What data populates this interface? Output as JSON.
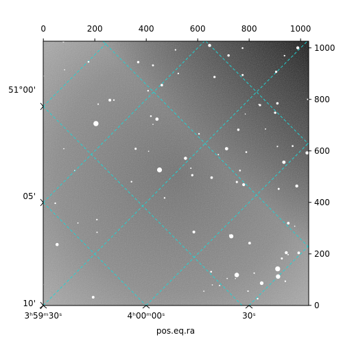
{
  "chart_data": {
    "type": "image",
    "xlabel": "pos.eq.ra",
    "xlim": [
      -0.5,
      1031.5
    ],
    "ylim": [
      -0.5,
      1026
    ],
    "xticks": [
      0,
      200,
      400,
      600,
      800,
      1000
    ],
    "yticks": [
      0,
      200,
      400,
      600,
      800,
      1000
    ],
    "ra_ticks": [
      "3ʰ59ᵐ30ˢ",
      "4ʰ00ᵐ00ˢ",
      "30ˢ"
    ],
    "dec_ticks": [
      "51°00'",
      "05'",
      "10'"
    ],
    "cmap": "gray",
    "grid_color": "#22d3d3"
  }
}
